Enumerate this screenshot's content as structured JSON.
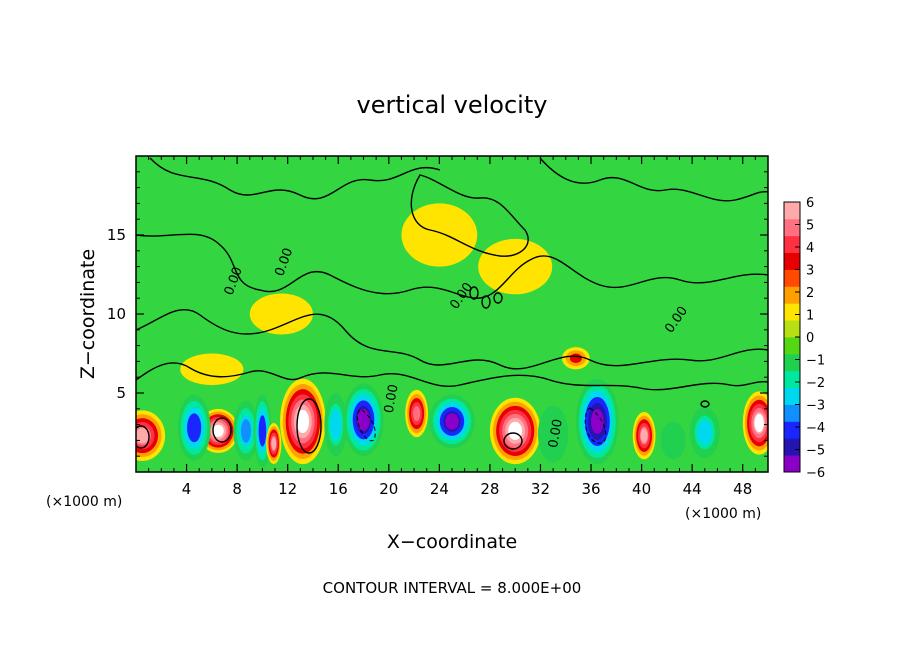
{
  "chart_data": {
    "type": "heatmap",
    "title": "vertical velocity",
    "xlabel": "X−coordinate",
    "ylabel": "Z−coordinate",
    "x_unit_left": "(×1000 m)",
    "x_unit_right": "(×1000 m)",
    "footer": "CONTOUR INTERVAL = 8.000E+00",
    "xlim": [
      0,
      50
    ],
    "ylim": [
      0,
      20
    ],
    "x_ticks": [
      4,
      8,
      12,
      16,
      20,
      24,
      28,
      32,
      36,
      40,
      44,
      48
    ],
    "x_tick_labels": [
      "4",
      "8",
      "12",
      "16",
      "20",
      "24",
      "28",
      "32",
      "36",
      "40",
      "44",
      "48"
    ],
    "y_ticks": [
      5,
      10,
      15
    ],
    "y_tick_labels": [
      "5",
      "10",
      "15"
    ],
    "colorbar": {
      "min": -6,
      "max": 6,
      "ticks": [
        6,
        5,
        4,
        3,
        2,
        1,
        0,
        -1,
        -2,
        -3,
        -4,
        -5,
        -6
      ],
      "tick_labels": [
        "6",
        "5",
        "4",
        "3",
        "2",
        "1",
        "0",
        "−1",
        "−2",
        "−3",
        "−4",
        "−5",
        "−6"
      ]
    },
    "contour_labels": [
      {
        "text": "0.00",
        "x": 8.0,
        "z": 12.0,
        "angle": -70
      },
      {
        "text": "0.00",
        "x": 12.0,
        "z": 13.2,
        "angle": -70
      },
      {
        "text": "0.00",
        "x": 20.5,
        "z": 4.6,
        "angle": -80
      },
      {
        "text": "0.00",
        "x": 33.5,
        "z": 2.4,
        "angle": -80
      },
      {
        "text": "0.00",
        "x": 43.0,
        "z": 9.5,
        "angle": -55
      },
      {
        "text": "0.00",
        "x": 26.0,
        "z": 11.0,
        "angle": -55
      }
    ],
    "cells": [
      {
        "x": 0.5,
        "z": 2.3,
        "value": 5.5,
        "sx": 1.8,
        "sz": 1.6
      },
      {
        "x": 6.5,
        "z": 2.6,
        "value": 7.0,
        "sx": 1.6,
        "sz": 1.4
      },
      {
        "x": 4.6,
        "z": 2.8,
        "value": -4.5,
        "sx": 1.3,
        "sz": 2.1
      },
      {
        "x": 8.7,
        "z": 2.6,
        "value": -3.5,
        "sx": 1.0,
        "sz": 1.9
      },
      {
        "x": 10.0,
        "z": 2.6,
        "value": -4.5,
        "sx": 0.7,
        "sz": 2.3
      },
      {
        "x": 10.9,
        "z": 1.8,
        "value": 5.5,
        "sx": 0.6,
        "sz": 1.3
      },
      {
        "x": 13.2,
        "z": 3.2,
        "value": 7.0,
        "sx": 1.8,
        "sz": 2.7
      },
      {
        "x": 15.8,
        "z": 3.0,
        "value": -2.5,
        "sx": 0.9,
        "sz": 2.0
      },
      {
        "x": 18.0,
        "z": 3.3,
        "value": -5.5,
        "sx": 1.6,
        "sz": 2.3
      },
      {
        "x": 22.2,
        "z": 3.7,
        "value": 5.0,
        "sx": 0.9,
        "sz": 1.5
      },
      {
        "x": 25.0,
        "z": 3.2,
        "value": -5.5,
        "sx": 1.8,
        "sz": 1.7
      },
      {
        "x": 30.0,
        "z": 2.6,
        "value": 7.0,
        "sx": 2.0,
        "sz": 2.1
      },
      {
        "x": 33.0,
        "z": 2.4,
        "value": -1.5,
        "sx": 1.2,
        "sz": 1.8
      },
      {
        "x": 36.5,
        "z": 3.2,
        "value": -6.0,
        "sx": 1.7,
        "sz": 2.7
      },
      {
        "x": 40.2,
        "z": 2.3,
        "value": 5.5,
        "sx": 0.9,
        "sz": 1.5
      },
      {
        "x": 42.5,
        "z": 2.0,
        "value": -1.5,
        "sx": 1.0,
        "sz": 1.2
      },
      {
        "x": 45.0,
        "z": 2.5,
        "value": -2.5,
        "sx": 1.2,
        "sz": 1.6
      },
      {
        "x": 49.3,
        "z": 3.1,
        "value": 6.5,
        "sx": 1.3,
        "sz": 2.0
      },
      {
        "x": 34.8,
        "z": 7.2,
        "value": 3.0,
        "sx": 1.1,
        "sz": 0.7
      },
      {
        "x": 11.5,
        "z": 10.0,
        "value": 1.0,
        "sx": 2.5,
        "sz": 1.3
      },
      {
        "x": 24.0,
        "z": 15.0,
        "value": 1.0,
        "sx": 3.0,
        "sz": 2.0
      },
      {
        "x": 30.0,
        "z": 13.0,
        "value": 0.8,
        "sx": 2.5,
        "sz": 1.5
      },
      {
        "x": 6.0,
        "z": 6.5,
        "value": 1.0,
        "sx": 2.5,
        "sz": 1.0
      }
    ]
  },
  "palette": {
    "background": "#ffffff",
    "field": "#33d640",
    "axis": "#000000",
    "colorbar_levels": [
      "#8a00c8",
      "#2414b0",
      "#1a26ff",
      "#1090ff",
      "#00d8f0",
      "#00e8a0",
      "#22d050",
      "#55d814",
      "#b6e014",
      "#ffe400",
      "#ffa000",
      "#ff4a00",
      "#e60000",
      "#ff3040",
      "#ff7080",
      "#ffaaaa"
    ],
    "extreme": "#ffffff"
  }
}
